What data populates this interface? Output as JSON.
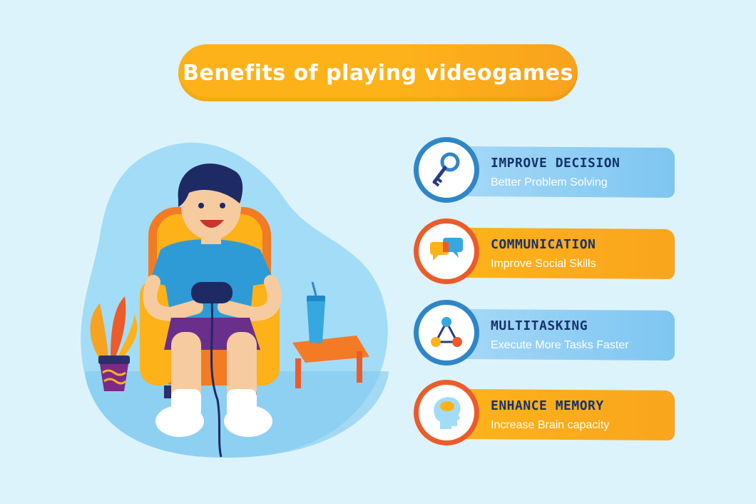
{
  "title": "Benefits of playing videogames",
  "colors": {
    "background": "#ddf3fb",
    "orange": "#fdb21a",
    "blue_banner": "#8ccdf4",
    "dark_text": "#16326b",
    "blue_ring": "#2f86c7",
    "orange_ring": "#ec5b2a"
  },
  "illustration": {
    "subject": "boy playing videogame in armchair",
    "icons": [
      "boy-icon",
      "armchair-icon",
      "plant-icon",
      "drink-cup-icon",
      "side-table-icon",
      "gamepad-icon"
    ]
  },
  "benefits": [
    {
      "title": "IMPROVE DECISION",
      "subtitle": "Better Problem Solving",
      "icon": "key-icon",
      "color": "blue"
    },
    {
      "title": "COMMUNICATION",
      "subtitle": "Improve Social Skills",
      "icon": "speech-bubbles-icon",
      "color": "orange"
    },
    {
      "title": "MULTITASKING",
      "subtitle": "Execute More Tasks Faster",
      "icon": "network-nodes-icon",
      "color": "blue"
    },
    {
      "title": "ENHANCE MEMORY",
      "subtitle": "Increase Brain capacity",
      "icon": "head-brain-icon",
      "color": "orange"
    }
  ]
}
